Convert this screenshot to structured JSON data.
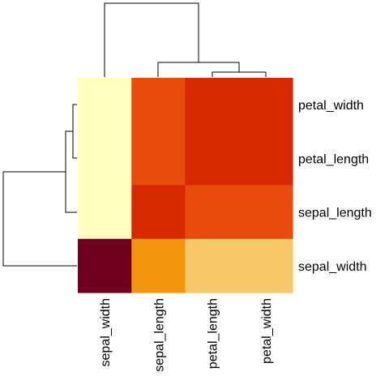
{
  "chart_data": {
    "type": "heatmap",
    "title": "",
    "xlabel": "",
    "ylabel": "",
    "columns": [
      "sepal_width",
      "sepal_length",
      "petal_length",
      "petal_width"
    ],
    "rows": [
      "petal_width",
      "petal_length",
      "sepal_length",
      "sepal_width"
    ],
    "cell_colors": [
      [
        "#FFFFC0",
        "#E84C0C",
        "#D82A02",
        "#D82A02"
      ],
      [
        "#FFFFC0",
        "#E84C0C",
        "#D82A02",
        "#D82A02"
      ],
      [
        "#FFFFC0",
        "#D82A02",
        "#E84C0C",
        "#E84C0C"
      ],
      [
        "#6F0022",
        "#F2940C",
        "#F7C867",
        "#F7C867"
      ]
    ],
    "column_dendrogram": true,
    "row_dendrogram": true
  }
}
